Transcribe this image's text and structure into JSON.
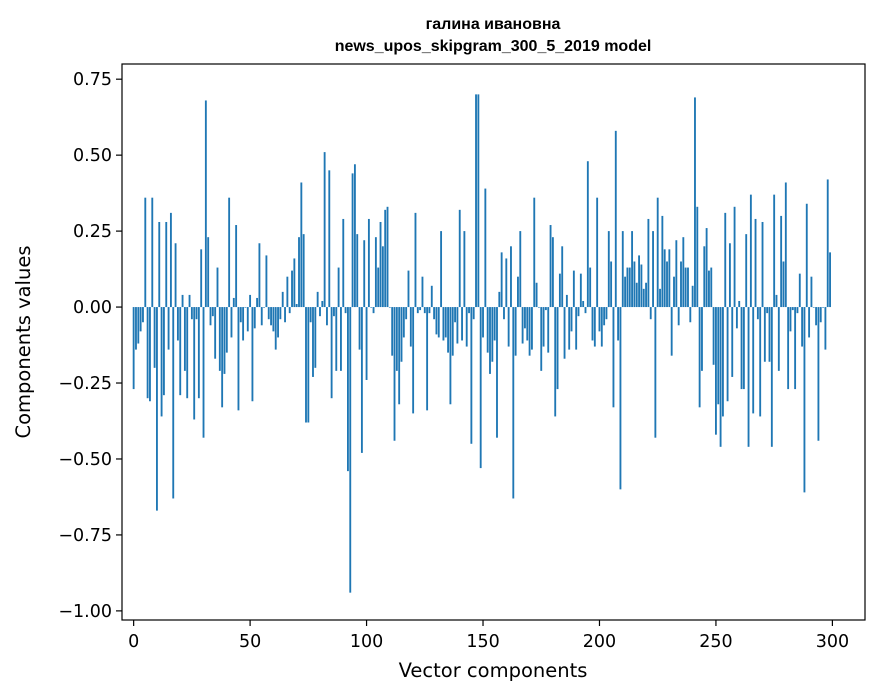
{
  "chart_data": {
    "type": "bar",
    "title": [
      "галина ивановна",
      "news_upos_skipgram_300_5_2019 model"
    ],
    "xlabel": "Vector components",
    "ylabel": "Components values",
    "xlim": [
      -5,
      314
    ],
    "ylim": [
      -1.03,
      0.8
    ],
    "xticks": [
      0,
      50,
      100,
      150,
      200,
      250,
      300
    ],
    "xtick_labels": [
      "0",
      "50",
      "100",
      "150",
      "200",
      "250",
      "300"
    ],
    "yticks": [
      0.75,
      0.5,
      0.25,
      0.0,
      -0.25,
      -0.5,
      -0.75,
      -1.0
    ],
    "ytick_labels": [
      "0.75",
      "0.50",
      "0.25",
      "0.00",
      "−0.25",
      "−0.50",
      "−0.75",
      "−1.00"
    ],
    "bar_color": "#1f77b4",
    "grid": false,
    "x": "0..299 (component index)",
    "values": [
      -0.27,
      -0.14,
      -0.12,
      -0.08,
      -0.05,
      0.36,
      -0.3,
      -0.31,
      0.36,
      -0.2,
      -0.67,
      0.28,
      -0.36,
      -0.29,
      0.28,
      -0.14,
      0.31,
      -0.63,
      0.21,
      -0.11,
      -0.29,
      0.04,
      -0.21,
      -0.3,
      0.04,
      -0.04,
      -0.37,
      -0.04,
      -0.3,
      0.19,
      -0.43,
      0.68,
      0.23,
      -0.06,
      -0.03,
      -0.17,
      0.13,
      -0.21,
      -0.33,
      -0.22,
      -0.15,
      0.36,
      -0.1,
      0.03,
      0.27,
      -0.34,
      -0.05,
      -0.11,
      0.0,
      -0.08,
      0.04,
      -0.31,
      -0.07,
      0.03,
      0.21,
      -0.06,
      0.0,
      0.17,
      -0.04,
      -0.06,
      -0.08,
      -0.14,
      -0.1,
      -0.04,
      0.05,
      -0.05,
      0.1,
      -0.02,
      0.12,
      0.16,
      0.01,
      0.23,
      0.41,
      0.24,
      -0.38,
      -0.38,
      -0.05,
      -0.23,
      -0.2,
      0.05,
      -0.03,
      0.02,
      0.51,
      -0.06,
      0.45,
      -0.3,
      -0.03,
      -0.21,
      0.13,
      -0.21,
      0.29,
      -0.02,
      -0.54,
      -0.94,
      0.44,
      0.47,
      0.24,
      -0.14,
      -0.48,
      0.22,
      -0.24,
      0.29,
      0.0,
      -0.02,
      0.23,
      0.13,
      0.28,
      0.2,
      0.32,
      0.33,
      0.0,
      -0.16,
      -0.44,
      -0.21,
      -0.32,
      -0.18,
      -0.1,
      -0.04,
      0.12,
      -0.13,
      -0.35,
      0.31,
      -0.02,
      -0.01,
      0.1,
      -0.02,
      -0.34,
      -0.02,
      0.07,
      -0.04,
      -0.09,
      -0.1,
      0.25,
      -0.11,
      -0.1,
      -0.15,
      -0.32,
      -0.16,
      -0.05,
      -0.12,
      0.32,
      -0.11,
      0.25,
      -0.13,
      -0.02,
      -0.45,
      -0.04,
      0.7,
      0.7,
      -0.53,
      -0.1,
      0.39,
      -0.15,
      -0.22,
      -0.18,
      -0.11,
      -0.43,
      0.05,
      0.18,
      -0.04,
      0.16,
      -0.13,
      0.2,
      -0.63,
      -0.16,
      0.1,
      0.25,
      -0.12,
      -0.07,
      -0.11,
      -0.16,
      -0.14,
      0.36,
      0.08,
      0.0,
      -0.21,
      -0.13,
      -0.01,
      -0.15,
      0.27,
      0.23,
      -0.36,
      -0.27,
      0.11,
      0.2,
      -0.17,
      0.04,
      -0.14,
      -0.08,
      0.12,
      -0.14,
      -0.03,
      0.11,
      0.02,
      -0.02,
      0.48,
      0.13,
      -0.11,
      -0.13,
      0.36,
      -0.08,
      -0.13,
      -0.06,
      -0.04,
      0.25,
      0.15,
      -0.33,
      0.58,
      -0.11,
      -0.6,
      0.25,
      0.1,
      0.13,
      0.13,
      0.25,
      0.15,
      0.08,
      0.17,
      0.14,
      0.06,
      0.08,
      0.29,
      -0.04,
      0.25,
      -0.43,
      0.36,
      0.06,
      0.3,
      0.19,
      0.15,
      0.19,
      -0.16,
      0.1,
      0.22,
      -0.06,
      0.15,
      0.23,
      0.13,
      0.13,
      -0.05,
      0.07,
      0.69,
      0.33,
      -0.33,
      -0.21,
      0.2,
      0.26,
      0.12,
      0.13,
      -0.19,
      -0.42,
      -0.32,
      -0.46,
      -0.36,
      0.31,
      -0.31,
      0.21,
      -0.23,
      0.33,
      -0.07,
      0.02,
      -0.27,
      -0.27,
      0.24,
      -0.46,
      0.37,
      -0.35,
      0.29,
      -0.04,
      -0.36,
      0.28,
      -0.18,
      -0.02,
      -0.18,
      -0.46,
      0.37,
      0.04,
      -0.21,
      0.3,
      0.15,
      0.41,
      -0.27,
      -0.08,
      -0.01,
      -0.27,
      -0.02,
      0.11,
      -0.13,
      -0.61,
      0.34,
      -0.1,
      0.1,
      0.0,
      -0.06,
      -0.44,
      -0.05,
      0.0,
      -0.14,
      0.42,
      0.18
    ]
  }
}
